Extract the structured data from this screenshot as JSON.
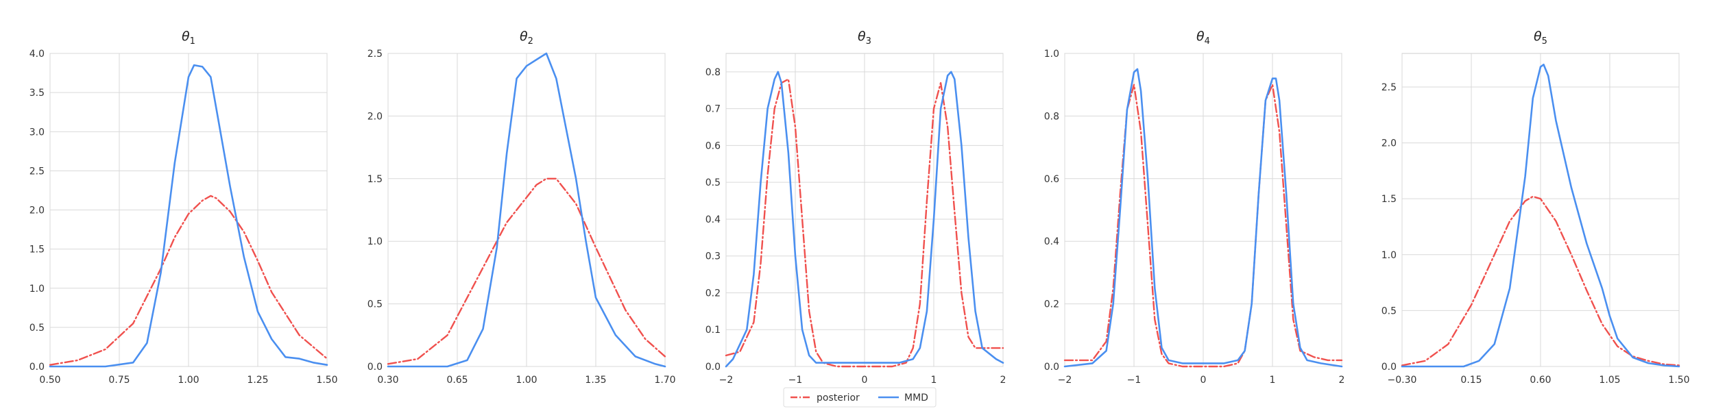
{
  "chart_data": [
    {
      "type": "line",
      "title": "θ1",
      "xlim": [
        0.5,
        1.5
      ],
      "ylim": [
        0,
        4.0
      ],
      "xticks": [
        "0.50",
        "0.75",
        "1.00",
        "1.25",
        "1.50"
      ],
      "yticks": [
        "0.0",
        "0.5",
        "1.0",
        "1.5",
        "2.0",
        "2.5",
        "3.0",
        "3.5",
        "4.0"
      ],
      "series": [
        {
          "name": "posterior",
          "x": [
            0.5,
            0.6,
            0.7,
            0.8,
            0.9,
            0.95,
            1.0,
            1.05,
            1.08,
            1.1,
            1.15,
            1.2,
            1.25,
            1.3,
            1.4,
            1.5
          ],
          "y": [
            0.02,
            0.08,
            0.22,
            0.55,
            1.25,
            1.65,
            1.95,
            2.12,
            2.18,
            2.15,
            1.98,
            1.72,
            1.35,
            0.95,
            0.4,
            0.1
          ]
        },
        {
          "name": "MMD",
          "x": [
            0.5,
            0.7,
            0.8,
            0.85,
            0.9,
            0.95,
            1.0,
            1.02,
            1.05,
            1.08,
            1.1,
            1.15,
            1.2,
            1.25,
            1.3,
            1.35,
            1.4,
            1.45,
            1.5
          ],
          "y": [
            0.0,
            0.0,
            0.05,
            0.3,
            1.2,
            2.6,
            3.7,
            3.85,
            3.83,
            3.7,
            3.3,
            2.3,
            1.4,
            0.7,
            0.35,
            0.12,
            0.1,
            0.05,
            0.02
          ]
        }
      ]
    },
    {
      "type": "line",
      "title": "θ2",
      "xlim": [
        0.3,
        1.7
      ],
      "ylim": [
        0,
        2.5
      ],
      "xticks": [
        "0.30",
        "0.65",
        "1.00",
        "1.35",
        "1.70"
      ],
      "yticks": [
        "0.0",
        "0.5",
        "1.0",
        "1.5",
        "2.0",
        "2.5"
      ],
      "series": [
        {
          "name": "posterior",
          "x": [
            0.3,
            0.45,
            0.6,
            0.75,
            0.9,
            1.0,
            1.05,
            1.1,
            1.15,
            1.25,
            1.35,
            1.5,
            1.6,
            1.7
          ],
          "y": [
            0.02,
            0.06,
            0.25,
            0.7,
            1.15,
            1.35,
            1.45,
            1.5,
            1.5,
            1.3,
            0.95,
            0.45,
            0.22,
            0.08
          ]
        },
        {
          "name": "MMD",
          "x": [
            0.3,
            0.6,
            0.7,
            0.78,
            0.85,
            0.9,
            0.95,
            1.0,
            1.05,
            1.1,
            1.15,
            1.2,
            1.25,
            1.3,
            1.35,
            1.45,
            1.55,
            1.65,
            1.7
          ],
          "y": [
            0.0,
            0.0,
            0.05,
            0.3,
            0.95,
            1.7,
            2.3,
            2.4,
            2.45,
            2.5,
            2.3,
            1.9,
            1.5,
            1.0,
            0.55,
            0.25,
            0.08,
            0.02,
            0.0
          ]
        }
      ]
    },
    {
      "type": "line",
      "title": "θ3",
      "xlim": [
        -2,
        2
      ],
      "ylim": [
        0,
        0.85
      ],
      "xticks": [
        "−2",
        "−1",
        "0",
        "1",
        "2"
      ],
      "yticks": [
        "0.0",
        "0.1",
        "0.2",
        "0.3",
        "0.4",
        "0.5",
        "0.6",
        "0.7",
        "0.8"
      ],
      "series": [
        {
          "name": "posterior",
          "x": [
            -2,
            -1.8,
            -1.6,
            -1.5,
            -1.4,
            -1.3,
            -1.2,
            -1.1,
            -1.0,
            -0.9,
            -0.8,
            -0.7,
            -0.6,
            -0.4,
            0,
            0.4,
            0.6,
            0.7,
            0.8,
            0.9,
            1.0,
            1.1,
            1.2,
            1.3,
            1.4,
            1.5,
            1.6,
            1.8,
            2
          ],
          "y": [
            0.03,
            0.04,
            0.12,
            0.28,
            0.52,
            0.7,
            0.77,
            0.78,
            0.65,
            0.4,
            0.15,
            0.04,
            0.01,
            0.0,
            0.0,
            0.0,
            0.01,
            0.05,
            0.17,
            0.45,
            0.7,
            0.77,
            0.65,
            0.42,
            0.2,
            0.08,
            0.05,
            0.05,
            0.05
          ]
        },
        {
          "name": "MMD",
          "x": [
            -2,
            -1.9,
            -1.7,
            -1.6,
            -1.5,
            -1.4,
            -1.3,
            -1.25,
            -1.2,
            -1.1,
            -1.0,
            -0.9,
            -0.8,
            -0.7,
            -0.5,
            0,
            0.5,
            0.7,
            0.8,
            0.9,
            1.0,
            1.1,
            1.2,
            1.25,
            1.3,
            1.4,
            1.5,
            1.6,
            1.7,
            1.9,
            2
          ],
          "y": [
            0.0,
            0.02,
            0.1,
            0.25,
            0.5,
            0.7,
            0.78,
            0.8,
            0.77,
            0.58,
            0.3,
            0.1,
            0.03,
            0.01,
            0.01,
            0.01,
            0.01,
            0.02,
            0.05,
            0.15,
            0.4,
            0.7,
            0.79,
            0.8,
            0.78,
            0.6,
            0.35,
            0.15,
            0.05,
            0.02,
            0.01
          ]
        }
      ]
    },
    {
      "type": "line",
      "title": "θ4",
      "xlim": [
        -2,
        2
      ],
      "ylim": [
        0,
        1.0
      ],
      "xticks": [
        "−2",
        "−1",
        "0",
        "1",
        "2"
      ],
      "yticks": [
        "0.0",
        "0.2",
        "0.4",
        "0.6",
        "0.8",
        "1.0"
      ],
      "series": [
        {
          "name": "posterior",
          "x": [
            -2,
            -1.6,
            -1.4,
            -1.3,
            -1.2,
            -1.1,
            -1.0,
            -0.9,
            -0.8,
            -0.7,
            -0.6,
            -0.5,
            -0.3,
            0,
            0.3,
            0.5,
            0.6,
            0.7,
            0.8,
            0.9,
            1.0,
            1.1,
            1.2,
            1.3,
            1.4,
            1.6,
            1.8,
            2
          ],
          "y": [
            0.02,
            0.02,
            0.08,
            0.25,
            0.55,
            0.82,
            0.9,
            0.75,
            0.45,
            0.15,
            0.04,
            0.01,
            0.0,
            0.0,
            0.0,
            0.01,
            0.05,
            0.2,
            0.55,
            0.85,
            0.9,
            0.75,
            0.45,
            0.15,
            0.05,
            0.03,
            0.02,
            0.02
          ]
        },
        {
          "name": "MMD",
          "x": [
            -2,
            -1.6,
            -1.4,
            -1.3,
            -1.2,
            -1.1,
            -1.0,
            -0.95,
            -0.9,
            -0.8,
            -0.7,
            -0.6,
            -0.5,
            -0.3,
            0,
            0.3,
            0.5,
            0.6,
            0.7,
            0.8,
            0.9,
            1.0,
            1.05,
            1.1,
            1.2,
            1.3,
            1.4,
            1.5,
            1.7,
            2
          ],
          "y": [
            0.0,
            0.01,
            0.05,
            0.2,
            0.5,
            0.82,
            0.94,
            0.95,
            0.88,
            0.6,
            0.25,
            0.06,
            0.02,
            0.01,
            0.01,
            0.01,
            0.02,
            0.05,
            0.2,
            0.55,
            0.85,
            0.92,
            0.92,
            0.85,
            0.55,
            0.2,
            0.06,
            0.02,
            0.01,
            0.0
          ]
        }
      ]
    },
    {
      "type": "line",
      "title": "θ5",
      "xlim": [
        -0.3,
        1.5
      ],
      "ylim": [
        0,
        2.8
      ],
      "xticks": [
        "−0.30",
        "0.15",
        "0.60",
        "1.05",
        "1.50"
      ],
      "yticks": [
        "0.0",
        "0.5",
        "1.0",
        "1.5",
        "2.0",
        "2.5"
      ],
      "series": [
        {
          "name": "posterior",
          "x": [
            -0.3,
            -0.15,
            0.0,
            0.15,
            0.3,
            0.4,
            0.5,
            0.55,
            0.6,
            0.7,
            0.8,
            0.9,
            1.0,
            1.1,
            1.2,
            1.3,
            1.4,
            1.5
          ],
          "y": [
            0.01,
            0.05,
            0.2,
            0.55,
            1.0,
            1.3,
            1.48,
            1.52,
            1.5,
            1.3,
            1.0,
            0.68,
            0.38,
            0.18,
            0.09,
            0.05,
            0.02,
            0.01
          ]
        },
        {
          "name": "MMD",
          "x": [
            -0.3,
            0.1,
            0.2,
            0.3,
            0.4,
            0.5,
            0.55,
            0.6,
            0.62,
            0.65,
            0.7,
            0.8,
            0.9,
            1.0,
            1.05,
            1.1,
            1.2,
            1.3,
            1.4,
            1.5
          ],
          "y": [
            0.0,
            0.0,
            0.05,
            0.2,
            0.7,
            1.7,
            2.4,
            2.68,
            2.7,
            2.6,
            2.2,
            1.6,
            1.1,
            0.7,
            0.45,
            0.25,
            0.08,
            0.03,
            0.01,
            0.0
          ]
        }
      ]
    }
  ],
  "legend": {
    "posterior": "posterior",
    "mmd": "MMD"
  },
  "colors": {
    "posterior": "#f0504d",
    "mmd": "#4a8ff0"
  }
}
